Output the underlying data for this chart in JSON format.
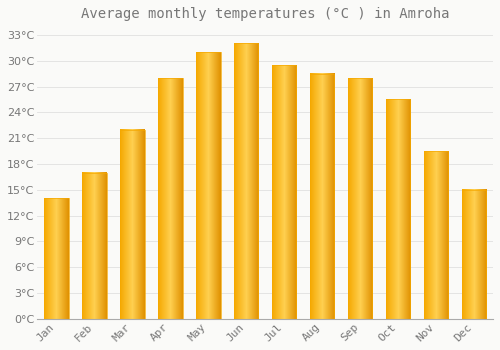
{
  "title": "Average monthly temperatures (°C ) in Amroha",
  "months": [
    "Jan",
    "Feb",
    "Mar",
    "Apr",
    "May",
    "Jun",
    "Jul",
    "Aug",
    "Sep",
    "Oct",
    "Nov",
    "Dec"
  ],
  "temperatures": [
    14.0,
    17.0,
    22.0,
    28.0,
    31.0,
    32.0,
    29.5,
    28.5,
    28.0,
    25.5,
    19.5,
    15.0
  ],
  "bar_color_left": "#F5A800",
  "bar_color_mid": "#FFD050",
  "bar_color_right": "#E09000",
  "background_color": "#FAFAF8",
  "grid_color": "#E0E0E0",
  "text_color": "#777777",
  "title_fontsize": 10,
  "tick_fontsize": 8,
  "ylim": [
    0,
    34
  ],
  "yticks": [
    0,
    3,
    6,
    9,
    12,
    15,
    18,
    21,
    24,
    27,
    30,
    33
  ]
}
